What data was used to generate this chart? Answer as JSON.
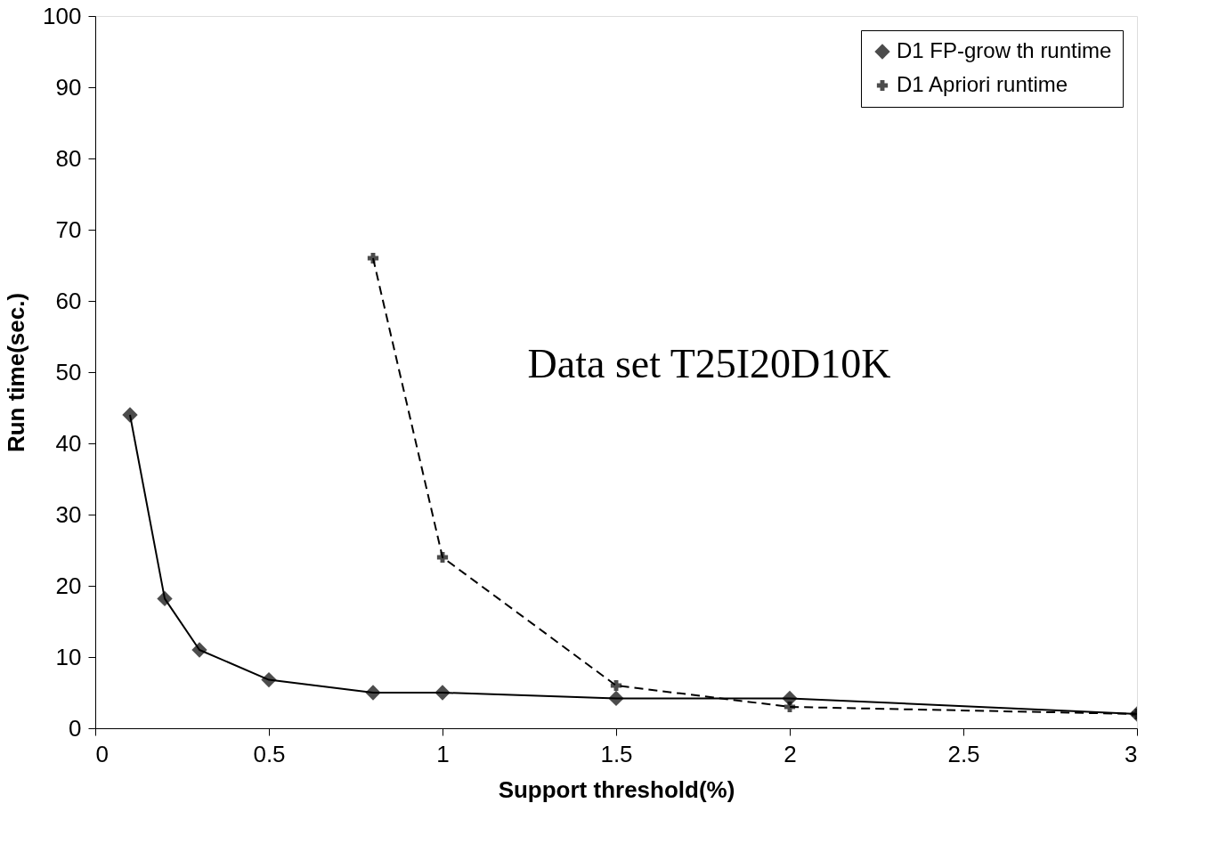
{
  "chart_data": {
    "type": "line",
    "xlabel": "Support threshold(%)",
    "ylabel": "Run time(sec.)",
    "annotations": [
      "Data set T25I20D10K"
    ],
    "xlim": [
      0,
      3
    ],
    "xticks": [
      0,
      0.5,
      1,
      1.5,
      2,
      2.5,
      3
    ],
    "ylim": [
      0,
      100
    ],
    "yticks": [
      0,
      10,
      20,
      30,
      40,
      50,
      60,
      70,
      80,
      90,
      100
    ],
    "grid": false,
    "legend": "top right",
    "series": [
      {
        "name": "D1 FP-grow th runtime",
        "color": "#000000",
        "marker": "diamond",
        "line_style": "solid",
        "x": [
          0.1,
          0.2,
          0.3,
          0.5,
          0.8,
          1,
          1.5,
          2,
          3
        ],
        "values": [
          44,
          18.2,
          11,
          6.8,
          5,
          5,
          4.2,
          4.2,
          2
        ]
      },
      {
        "name": "D1 Apriori runtime",
        "color": "#000000",
        "marker": "cross",
        "line_style": "dashed",
        "x": [
          0.8,
          1,
          1.5,
          2,
          3
        ],
        "values": [
          66,
          24,
          6,
          3,
          2
        ]
      }
    ]
  }
}
